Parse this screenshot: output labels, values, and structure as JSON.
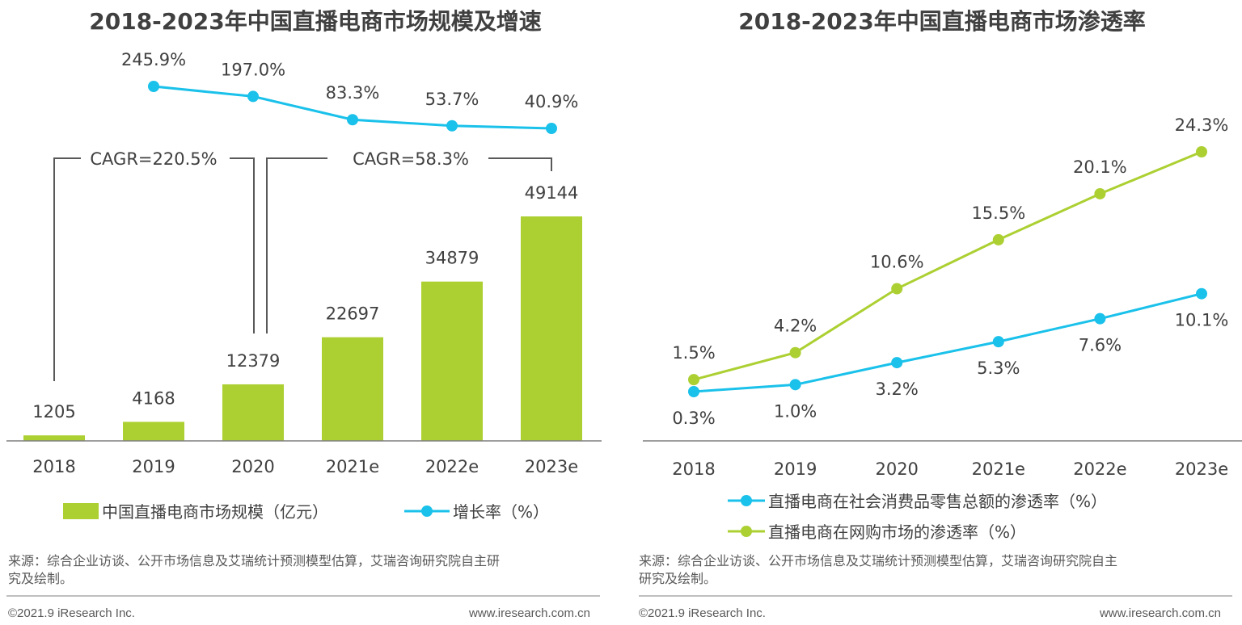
{
  "colors": {
    "green": "#acd032",
    "blue": "#1ac1ea",
    "axis": "#7f7f7f",
    "bracket": "#595959"
  },
  "chart_data": [
    {
      "type": "bar",
      "title": "2018-2023年中国直播电商市场规模及增速",
      "categories": [
        "2018",
        "2019",
        "2020",
        "2021e",
        "2022e",
        "2023e"
      ],
      "series": [
        {
          "name": "中国直播电商市场规模（亿元）",
          "type": "bar",
          "values": [
            1205,
            4168,
            12379,
            22697,
            34879,
            49144
          ],
          "labels": [
            "1205",
            "4168",
            "12379",
            "22697",
            "34879",
            "49144"
          ]
        },
        {
          "name": "增长率（%）",
          "type": "line",
          "x": [
            "2019",
            "2020",
            "2021e",
            "2022e",
            "2023e"
          ],
          "values": [
            245.9,
            197.0,
            83.3,
            53.7,
            40.9
          ],
          "labels": [
            "245.9%",
            "197.0%",
            "83.3%",
            "53.7%",
            "40.9%"
          ]
        }
      ],
      "annotations": [
        "CAGR=220.5%",
        "CAGR=58.3%"
      ]
    },
    {
      "type": "line",
      "title": "2018-2023年中国直播电商市场渗透率",
      "categories": [
        "2018",
        "2019",
        "2020",
        "2021e",
        "2022e",
        "2023e"
      ],
      "series": [
        {
          "name": "直播电商在社会消费品零售总额的渗透率（%）",
          "values": [
            0.3,
            1.0,
            3.2,
            5.3,
            7.6,
            10.1
          ],
          "labels": [
            "0.3%",
            "1.0%",
            "3.2%",
            "5.3%",
            "7.6%",
            "10.1%"
          ]
        },
        {
          "name": "直播电商在网购市场的渗透率（%）",
          "values": [
            1.5,
            4.2,
            10.6,
            15.5,
            20.1,
            24.3
          ],
          "labels": [
            "1.5%",
            "4.2%",
            "10.6%",
            "15.5%",
            "20.1%",
            "24.3%"
          ]
        }
      ]
    }
  ],
  "footer": {
    "source_left_line1": "来源：综合企业访谈、公开市场信息及艾瑞统计预测模型估算，艾瑞咨询研究院自主研",
    "source_left_line2": "究及绘制。",
    "source_right_line1": "来源：综合企业访谈、公开市场信息及艾瑞统计预测模型估算，艾瑞咨询研究院自主",
    "source_right_line2": "研究及绘制。",
    "copyright": "©2021.9 iResearch Inc.",
    "website": "www.iresearch.com.cn"
  }
}
